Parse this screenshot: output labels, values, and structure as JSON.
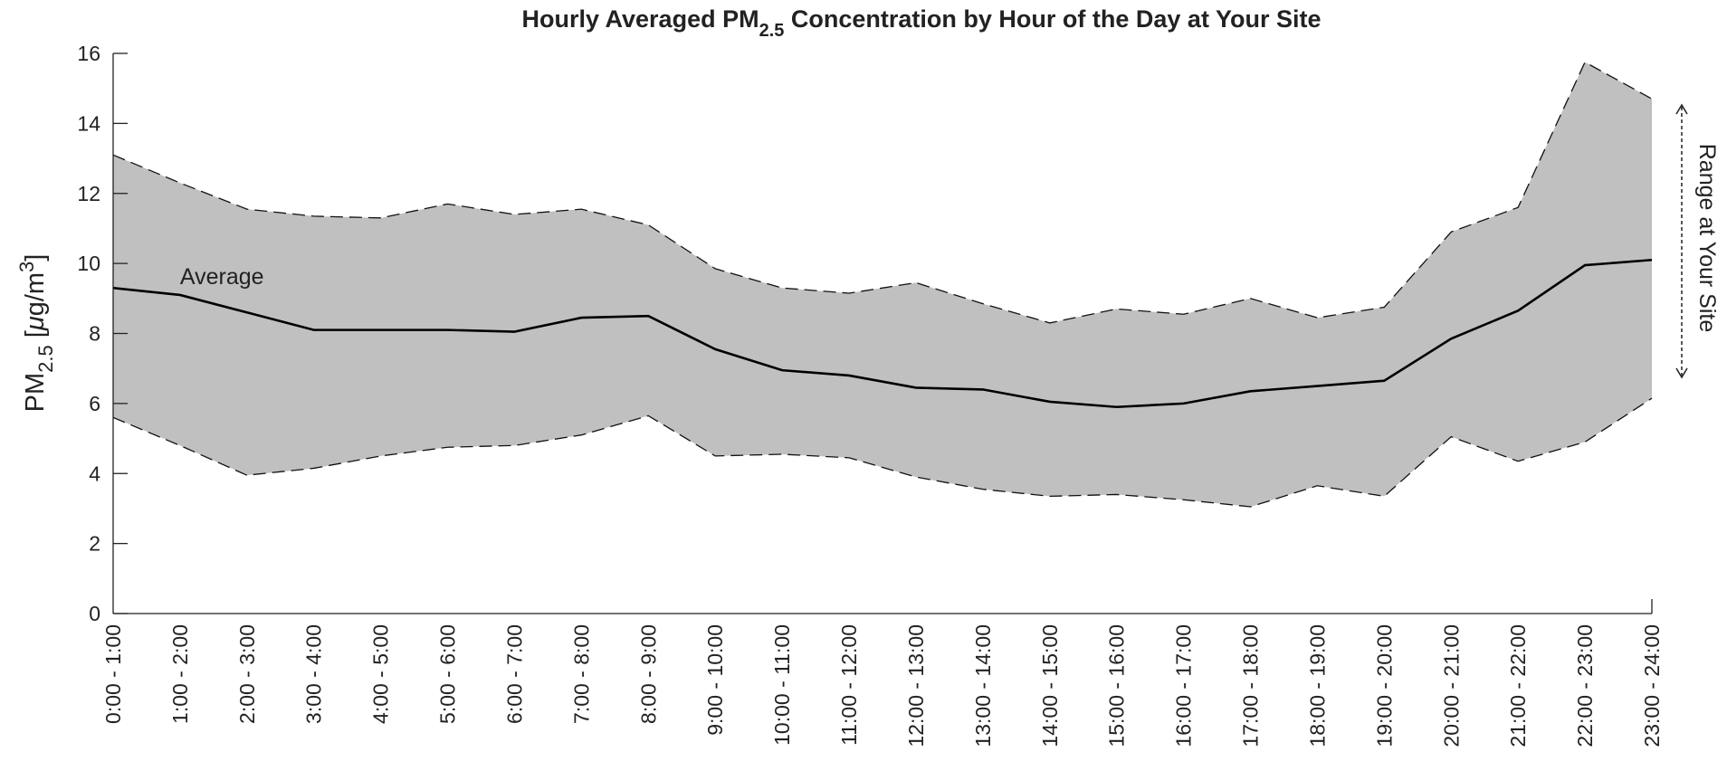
{
  "chart_data": {
    "type": "line",
    "title": {
      "text": "Hourly Averaged PM",
      "sub": "2.5",
      "rest": " Concentration by Hour of the Day at Your Site"
    },
    "ylabel": {
      "text": "PM",
      "sub": "2.5",
      "unit_open": " [",
      "mu": "μ",
      "unit": "g/m",
      "sup": "3",
      "close": "]"
    },
    "categories": [
      "0:00 - 1:00",
      "1:00 - 2:00",
      "2:00 - 3:00",
      "3:00 - 4:00",
      "4:00 - 5:00",
      "5:00 - 6:00",
      "6:00 - 7:00",
      "7:00 - 8:00",
      "8:00 - 9:00",
      "9:00 - 10:00",
      "10:00 - 11:00",
      "11:00 - 12:00",
      "12:00 - 13:00",
      "13:00 - 14:00",
      "14:00 - 15:00",
      "15:00 - 16:00",
      "16:00 - 17:00",
      "17:00 - 18:00",
      "18:00 - 19:00",
      "19:00 - 20:00",
      "20:00 - 21:00",
      "21:00 - 22:00",
      "22:00 - 23:00",
      "23:00 - 24:00"
    ],
    "series": [
      {
        "name": "Average",
        "color": "#000000",
        "values": [
          9.3,
          9.1,
          8.6,
          8.1,
          8.1,
          8.1,
          8.05,
          8.45,
          8.5,
          7.55,
          6.95,
          6.8,
          6.45,
          6.4,
          6.05,
          5.9,
          6.0,
          6.35,
          6.5,
          6.65,
          7.85,
          8.65,
          9.95,
          10.1
        ]
      }
    ],
    "range": {
      "name": "Range at Your Site",
      "color": "#c0c0c0",
      "upper": [
        13.1,
        12.3,
        11.55,
        11.35,
        11.3,
        11.7,
        11.4,
        11.55,
        11.1,
        9.85,
        9.3,
        9.15,
        9.45,
        8.85,
        8.3,
        8.7,
        8.55,
        9.0,
        8.45,
        8.75,
        10.9,
        11.6,
        15.75,
        14.7
      ],
      "lower": [
        5.6,
        4.8,
        3.95,
        4.15,
        4.5,
        4.75,
        4.8,
        5.1,
        5.65,
        4.5,
        4.55,
        4.45,
        3.9,
        3.55,
        3.35,
        3.4,
        3.25,
        3.05,
        3.65,
        3.35,
        5.05,
        4.35,
        4.9,
        6.15
      ]
    },
    "ylim": [
      0,
      16
    ],
    "yticks": [
      0,
      2,
      4,
      6,
      8,
      10,
      12,
      14,
      16
    ],
    "grid": false
  }
}
